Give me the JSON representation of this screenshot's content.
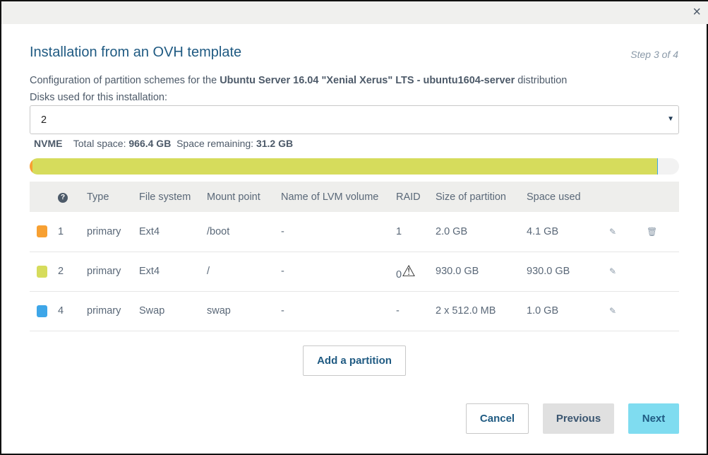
{
  "dialog": {
    "title": "Installation from an OVH template",
    "step": "Step 3 of 4",
    "close_icon": "×"
  },
  "description": {
    "prefix": "Configuration of partition schemes for the ",
    "distribution": "Ubuntu Server 16.04 \"Xenial Xerus\" LTS - ubuntu1604-server",
    "suffix": " distribution"
  },
  "disks": {
    "label": "Disks used for this installation:",
    "value": "2"
  },
  "storage": {
    "type": "NVME",
    "total_label": "Total space:",
    "total": "966.4 GB",
    "remaining_label": "Space remaining:",
    "remaining": "31.2 GB",
    "usage_percent": [
      {
        "name": "/boot",
        "percent": 0.4,
        "color": "#f7a032"
      },
      {
        "name": "/",
        "percent": 96.2,
        "color": "#d6dc5c"
      },
      {
        "name": "swap",
        "percent": 0.1,
        "color": "#3ea6e8"
      }
    ]
  },
  "table": {
    "headers": [
      "Type",
      "File system",
      "Mount point",
      "Name of LVM volume",
      "RAID",
      "Size of partition",
      "Space used"
    ],
    "rows": [
      {
        "color": "#f7a032",
        "order": "1",
        "type": "primary",
        "fs": "Ext4",
        "mount": "/boot",
        "lvm": "-",
        "raid": "1",
        "size": "2.0 GB",
        "used": "4.1 GB",
        "deletable": true,
        "warning": false
      },
      {
        "color": "#d6dc5c",
        "order": "2",
        "type": "primary",
        "fs": "Ext4",
        "mount": "/",
        "lvm": "-",
        "raid": "0",
        "size": "930.0 GB",
        "used": "930.0 GB",
        "deletable": false,
        "warning": true
      },
      {
        "color": "#3ea6e8",
        "order": "4",
        "type": "primary",
        "fs": "Swap",
        "mount": "swap",
        "lvm": "-",
        "raid": "-",
        "size": "2 x 512.0 MB",
        "used": "1.0 GB",
        "deletable": false,
        "warning": false
      }
    ]
  },
  "buttons": {
    "add": "Add a partition",
    "cancel": "Cancel",
    "previous": "Previous",
    "next": "Next"
  }
}
